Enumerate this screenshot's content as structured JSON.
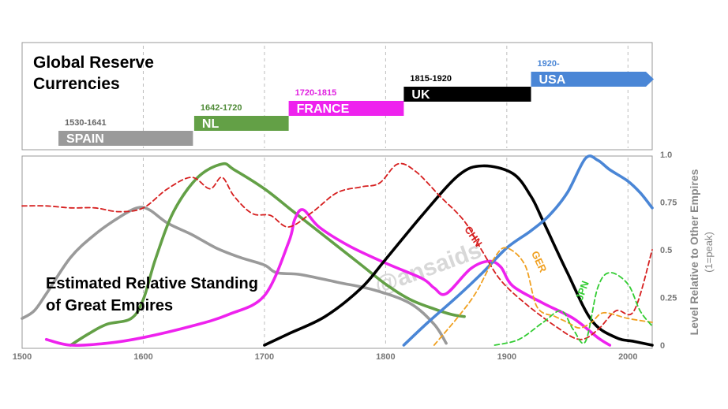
{
  "chart_data": [
    {
      "type": "timeline",
      "title": "Global Reserve Currencies",
      "xlim": [
        1500,
        2020
      ],
      "periods": [
        {
          "name": "SPAIN",
          "label": "1530-1641",
          "start": 1530,
          "end": 1641,
          "color": "#9a9a9a",
          "label_color": "#666666"
        },
        {
          "name": "NL",
          "label": "1642-1720",
          "start": 1642,
          "end": 1720,
          "color": "#63a046",
          "label_color": "#4e8a36"
        },
        {
          "name": "FRANCE",
          "label": "1720-1815",
          "start": 1720,
          "end": 1815,
          "color": "#ee22ee",
          "label_color": "#e020e0"
        },
        {
          "name": "UK",
          "label": "1815-1920",
          "start": 1815,
          "end": 1920,
          "color": "#000000",
          "label_color": "#000000"
        },
        {
          "name": "USA",
          "label": "1920-",
          "start": 1920,
          "end": 2020,
          "color": "#4a86d6",
          "label_color": "#4a86d6",
          "arrow": true
        }
      ]
    },
    {
      "type": "line",
      "title": "Estimated Relative Standing of Great Empires",
      "ylabel": "Level Relative to Other Empires",
      "ylabel_sub": "(1=peak)",
      "xlim": [
        1500,
        2020
      ],
      "ylim": [
        0,
        1
      ],
      "xticks": [
        1500,
        1600,
        1700,
        1800,
        1900,
        2000
      ],
      "yticks": [
        "0",
        "0.25",
        "0.5",
        "0.75",
        "1.0"
      ],
      "grid_x": [
        1600,
        1700,
        1800,
        1900,
        2000
      ],
      "watermark": "@ansaids",
      "series": [
        {
          "name": "",
          "color": "#9a9a9a",
          "dash": false,
          "points": [
            [
              1500,
              0.14
            ],
            [
              1510,
              0.18
            ],
            [
              1520,
              0.27
            ],
            [
              1540,
              0.46
            ],
            [
              1560,
              0.58
            ],
            [
              1580,
              0.67
            ],
            [
              1595,
              0.72
            ],
            [
              1605,
              0.71
            ],
            [
              1620,
              0.64
            ],
            [
              1640,
              0.58
            ],
            [
              1660,
              0.51
            ],
            [
              1680,
              0.46
            ],
            [
              1700,
              0.42
            ],
            [
              1710,
              0.38
            ],
            [
              1730,
              0.37
            ],
            [
              1760,
              0.33
            ],
            [
              1790,
              0.29
            ],
            [
              1820,
              0.22
            ],
            [
              1840,
              0.11
            ],
            [
              1850,
              0.01
            ]
          ]
        },
        {
          "name": "",
          "color": "#63a046",
          "dash": false,
          "points": [
            [
              1540,
              0.0
            ],
            [
              1555,
              0.06
            ],
            [
              1570,
              0.11
            ],
            [
              1590,
              0.14
            ],
            [
              1600,
              0.24
            ],
            [
              1610,
              0.45
            ],
            [
              1625,
              0.7
            ],
            [
              1645,
              0.88
            ],
            [
              1665,
              0.95
            ],
            [
              1675,
              0.92
            ],
            [
              1700,
              0.82
            ],
            [
              1720,
              0.72
            ],
            [
              1740,
              0.62
            ],
            [
              1760,
              0.52
            ],
            [
              1780,
              0.42
            ],
            [
              1800,
              0.32
            ],
            [
              1820,
              0.24
            ],
            [
              1840,
              0.19
            ],
            [
              1855,
              0.16
            ],
            [
              1865,
              0.15
            ]
          ]
        },
        {
          "name": "",
          "color": "#ee22ee",
          "dash": false,
          "points": [
            [
              1520,
              0.03
            ],
            [
              1540,
              0.0
            ],
            [
              1570,
              0.01
            ],
            [
              1600,
              0.04
            ],
            [
              1640,
              0.1
            ],
            [
              1670,
              0.16
            ],
            [
              1700,
              0.26
            ],
            [
              1720,
              0.54
            ],
            [
              1725,
              0.66
            ],
            [
              1732,
              0.71
            ],
            [
              1745,
              0.62
            ],
            [
              1770,
              0.52
            ],
            [
              1800,
              0.43
            ],
            [
              1830,
              0.35
            ],
            [
              1840,
              0.3
            ],
            [
              1850,
              0.27
            ],
            [
              1870,
              0.4
            ],
            [
              1885,
              0.44
            ],
            [
              1895,
              0.41
            ],
            [
              1905,
              0.31
            ],
            [
              1930,
              0.22
            ],
            [
              1955,
              0.14
            ],
            [
              1975,
              0.04
            ],
            [
              1985,
              0.0
            ]
          ]
        },
        {
          "name": "UK",
          "color": "#000000",
          "dash": false,
          "points": [
            [
              1700,
              0.0
            ],
            [
              1720,
              0.06
            ],
            [
              1750,
              0.15
            ],
            [
              1780,
              0.3
            ],
            [
              1800,
              0.45
            ],
            [
              1830,
              0.68
            ],
            [
              1860,
              0.89
            ],
            [
              1880,
              0.94
            ],
            [
              1905,
              0.9
            ],
            [
              1920,
              0.78
            ],
            [
              1930,
              0.65
            ],
            [
              1950,
              0.38
            ],
            [
              1970,
              0.13
            ],
            [
              1990,
              0.04
            ],
            [
              2005,
              0.02
            ],
            [
              2020,
              0.0
            ]
          ]
        },
        {
          "name": "",
          "color": "#4a86d6",
          "dash": false,
          "points": [
            [
              1815,
              0.0
            ],
            [
              1835,
              0.12
            ],
            [
              1860,
              0.26
            ],
            [
              1880,
              0.38
            ],
            [
              1900,
              0.51
            ],
            [
              1920,
              0.6
            ],
            [
              1935,
              0.68
            ],
            [
              1950,
              0.8
            ],
            [
              1965,
              0.98
            ],
            [
              1975,
              0.97
            ],
            [
              1985,
              0.92
            ],
            [
              2000,
              0.86
            ],
            [
              2010,
              0.8
            ],
            [
              2020,
              0.72
            ]
          ]
        },
        {
          "name": "CHN",
          "color": "#d61f1f",
          "dash": true,
          "points": [
            [
              1500,
              0.73
            ],
            [
              1520,
              0.73
            ],
            [
              1540,
              0.72
            ],
            [
              1560,
              0.72
            ],
            [
              1580,
              0.7
            ],
            [
              1600,
              0.72
            ],
            [
              1620,
              0.82
            ],
            [
              1640,
              0.88
            ],
            [
              1655,
              0.82
            ],
            [
              1665,
              0.88
            ],
            [
              1675,
              0.78
            ],
            [
              1690,
              0.69
            ],
            [
              1705,
              0.68
            ],
            [
              1720,
              0.62
            ],
            [
              1740,
              0.7
            ],
            [
              1760,
              0.8
            ],
            [
              1780,
              0.83
            ],
            [
              1795,
              0.85
            ],
            [
              1810,
              0.95
            ],
            [
              1825,
              0.91
            ],
            [
              1845,
              0.78
            ],
            [
              1865,
              0.65
            ],
            [
              1880,
              0.49
            ],
            [
              1895,
              0.34
            ],
            [
              1915,
              0.22
            ],
            [
              1940,
              0.1
            ],
            [
              1960,
              0.03
            ],
            [
              1975,
              0.08
            ],
            [
              1990,
              0.18
            ],
            [
              2005,
              0.18
            ],
            [
              2020,
              0.5
            ]
          ]
        },
        {
          "name": "GER",
          "color": "#f0a020",
          "dash": true,
          "points": [
            [
              1840,
              0.0
            ],
            [
              1860,
              0.15
            ],
            [
              1875,
              0.28
            ],
            [
              1890,
              0.46
            ],
            [
              1900,
              0.51
            ],
            [
              1915,
              0.42
            ],
            [
              1925,
              0.2
            ],
            [
              1940,
              0.15
            ],
            [
              1950,
              0.12
            ],
            [
              1960,
              0.09
            ],
            [
              1970,
              0.12
            ],
            [
              1980,
              0.17
            ],
            [
              2000,
              0.14
            ],
            [
              2020,
              0.12
            ]
          ]
        },
        {
          "name": "JPN",
          "color": "#33cc33",
          "dash": true,
          "points": [
            [
              1890,
              0.0
            ],
            [
              1910,
              0.03
            ],
            [
              1930,
              0.12
            ],
            [
              1945,
              0.18
            ],
            [
              1955,
              0.08
            ],
            [
              1965,
              0.02
            ],
            [
              1975,
              0.3
            ],
            [
              1985,
              0.38
            ],
            [
              2000,
              0.32
            ],
            [
              2010,
              0.18
            ],
            [
              2020,
              0.1
            ]
          ]
        }
      ],
      "annotations": [
        {
          "text": "CHN",
          "x": 1870,
          "y": 0.56,
          "color": "#d61f1f",
          "rotate": 55
        },
        {
          "text": "GER",
          "x": 1924,
          "y": 0.43,
          "color": "#f0a020",
          "rotate": 65
        },
        {
          "text": "JPN",
          "x": 1965,
          "y": 0.28,
          "color": "#33cc33",
          "rotate": -70
        }
      ]
    }
  ]
}
